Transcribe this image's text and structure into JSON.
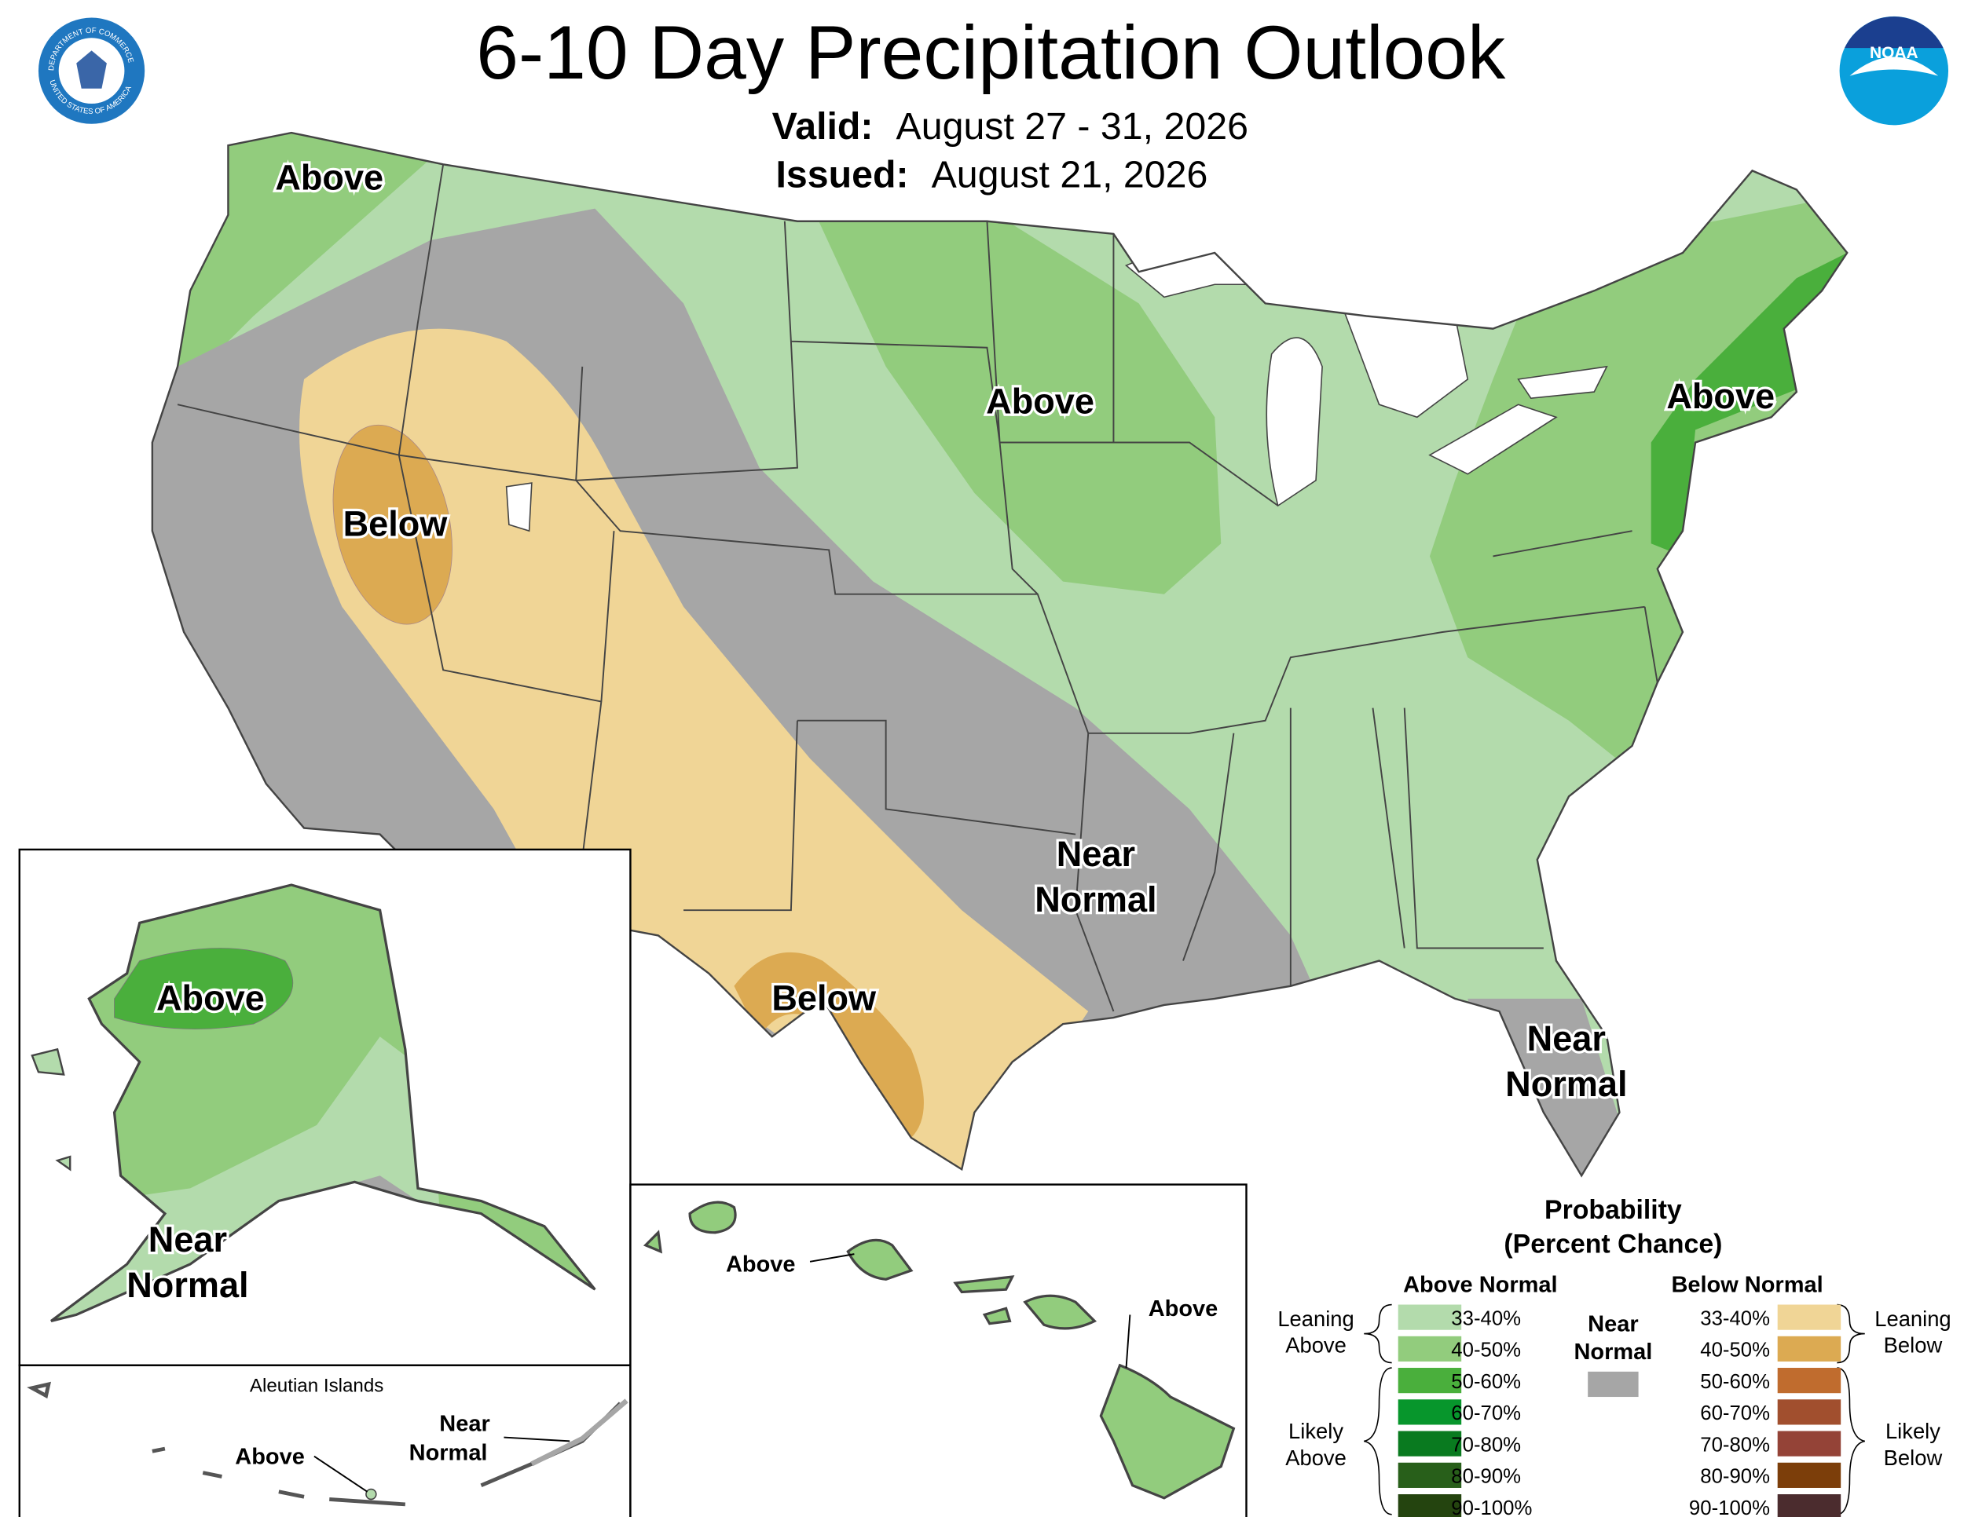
{
  "header": {
    "title": "6-10 Day Precipitation Outlook",
    "valid_label": "Valid:",
    "valid_dates": "August 27 - 31, 2026",
    "issued_label": "Issued:",
    "issued_date": "August 21, 2026"
  },
  "logos": {
    "commerce_top": "DEPARTMENT OF COMMERCE",
    "commerce_bottom": "UNITED STATES OF AMERICA",
    "noaa": "NOAA"
  },
  "conus_labels": {
    "northwest": "Above",
    "midwest": "Above",
    "northeast": "Above",
    "great_basin": "Below",
    "texas": "Below",
    "south": [
      "Near",
      "Normal"
    ],
    "florida": [
      "Near",
      "Normal"
    ]
  },
  "alaska_labels": {
    "north": "Above",
    "south": [
      "Near",
      "Normal"
    ]
  },
  "aleutian": {
    "title": "Aleutian Islands",
    "west": "Above",
    "east": [
      "Near",
      "Normal"
    ]
  },
  "hawaii_labels": {
    "west": "Above",
    "east": "Above"
  },
  "legend": {
    "title": [
      "Probability",
      "(Percent Chance)"
    ],
    "above_header": "Above Normal",
    "below_header": "Below Normal",
    "near": [
      "Near",
      "Normal"
    ],
    "near_color": "#a6a6a6",
    "leaning_above": [
      "Leaning",
      "Above"
    ],
    "likely_above": [
      "Likely",
      "Above"
    ],
    "leaning_below": [
      "Leaning",
      "Below"
    ],
    "likely_below": [
      "Likely",
      "Below"
    ],
    "above_bins": [
      {
        "label": "33-40%",
        "color": "#b3dbac"
      },
      {
        "label": "40-50%",
        "color": "#92cc7d"
      },
      {
        "label": "50-60%",
        "color": "#4aaf3c"
      },
      {
        "label": "60-70%",
        "color": "#07962c"
      },
      {
        "label": "70-80%",
        "color": "#097a1f"
      },
      {
        "label": "80-90%",
        "color": "#285f1a"
      },
      {
        "label": "90-100%",
        "color": "#24440f"
      }
    ],
    "below_bins": [
      {
        "label": "33-40%",
        "color": "#f0d596"
      },
      {
        "label": "40-50%",
        "color": "#dcaa52"
      },
      {
        "label": "50-60%",
        "color": "#c06c2e"
      },
      {
        "label": "60-70%",
        "color": "#a14f2e"
      },
      {
        "label": "70-80%",
        "color": "#944337"
      },
      {
        "label": "80-90%",
        "color": "#7c3e0a"
      },
      {
        "label": "90-100%",
        "color": "#4b2c2e"
      }
    ]
  }
}
